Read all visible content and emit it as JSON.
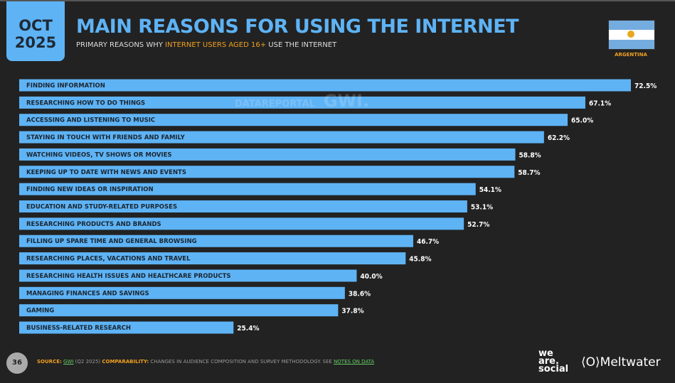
{
  "header": {
    "month": "OCT",
    "year": "2025",
    "title": "MAIN REASONS FOR USING THE INTERNET",
    "subtitle_pre": "PRIMARY REASONS WHY ",
    "subtitle_highlight": "INTERNET USERS AGED 16+",
    "subtitle_post": " USE THE INTERNET",
    "country": "ARGENTINA"
  },
  "watermark": {
    "a": "DATAREPORTAL",
    "b": "GWI."
  },
  "colors": {
    "bar": "#5eb3f5",
    "accent": "#f0a020",
    "background": "#222222"
  },
  "chart_data": {
    "type": "bar",
    "orientation": "horizontal",
    "title": "MAIN REASONS FOR USING THE INTERNET",
    "xlim": [
      0,
      72.5
    ],
    "categories": [
      "FINDING INFORMATION",
      "RESEARCHING HOW TO DO THINGS",
      "ACCESSING AND LISTENING TO MUSIC",
      "STAYING IN TOUCH WITH FRIENDS AND FAMILY",
      "WATCHING VIDEOS, TV SHOWS OR MOVIES",
      "KEEPING UP TO DATE WITH NEWS AND EVENTS",
      "FINDING NEW IDEAS OR INSPIRATION",
      "EDUCATION AND STUDY-RELATED PURPOSES",
      "RESEARCHING PRODUCTS AND BRANDS",
      "FILLING UP SPARE TIME AND GENERAL BROWSING",
      "RESEARCHING PLACES, VACATIONS AND TRAVEL",
      "RESEARCHING HEALTH ISSUES AND HEALTHCARE PRODUCTS",
      "MANAGING FINANCES AND SAVINGS",
      "GAMING",
      "BUSINESS-RELATED RESEARCH"
    ],
    "values": [
      72.5,
      67.1,
      65.0,
      62.2,
      58.8,
      58.7,
      54.1,
      53.1,
      52.7,
      46.7,
      45.8,
      40.0,
      38.6,
      37.8,
      25.4
    ]
  },
  "footer": {
    "page": "36",
    "source_label": "SOURCE:",
    "source": "GWI",
    "source_detail": " (Q2 2025)  ",
    "comp_label": "COMPARABILITY:",
    "comp_text": " CHANGES IN AUDIENCE COMPOSITION AND SURVEY METHODOLOGY. SEE ",
    "notes_link": "NOTES ON DATA",
    "brand1": "we are. social",
    "brand2": "⟨O⟩Meltwater"
  }
}
